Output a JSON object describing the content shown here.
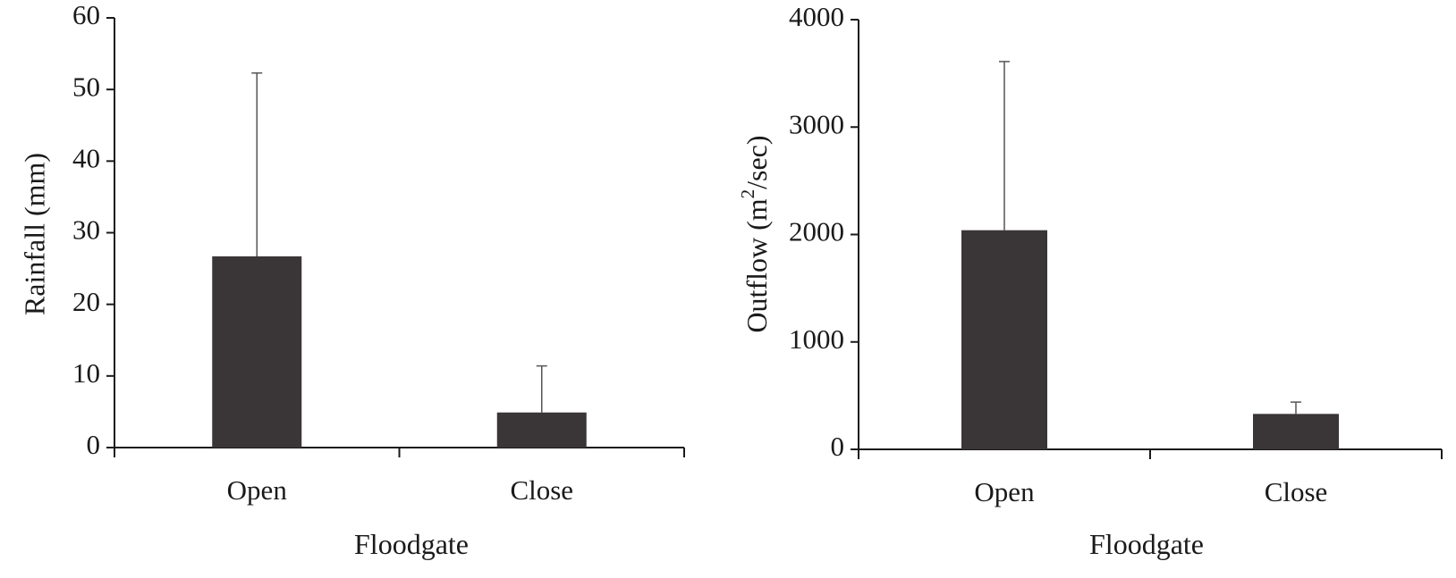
{
  "chart_data": [
    {
      "type": "bar",
      "categories": [
        "Open",
        "Close"
      ],
      "values": [
        26.7,
        4.9
      ],
      "error_plus": [
        25.6,
        6.5
      ],
      "xlabel": "Floodgate",
      "ylabel": "Rainfall  (mm)",
      "ylim": [
        0,
        60
      ],
      "yticks": [
        0,
        10,
        20,
        30,
        40,
        50,
        60
      ],
      "grid": false,
      "bar_color": "#3a3536"
    },
    {
      "type": "bar",
      "categories": [
        "Open",
        "Close"
      ],
      "values": [
        2040,
        330
      ],
      "error_plus": [
        1570,
        110
      ],
      "xlabel": "Floodgate",
      "ylabel": "Outflow (m",
      "ylabel_superscript": "2",
      "ylabel_suffix": "/sec)",
      "ylim": [
        0,
        4000
      ],
      "yticks": [
        0,
        1000,
        2000,
        3000,
        4000
      ],
      "grid": false,
      "bar_color": "#3a3536"
    }
  ]
}
